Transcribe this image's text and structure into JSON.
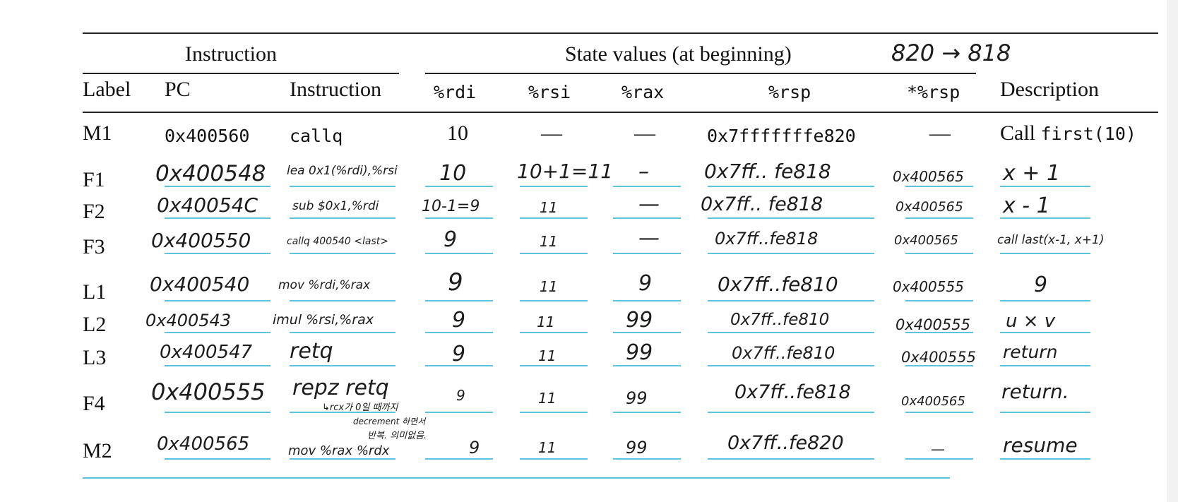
{
  "headers": {
    "group_instruction": "Instruction",
    "group_state": "State values (at beginning)",
    "annotation": "820 → 818",
    "columns": [
      "Label",
      "PC",
      "Instruction",
      "%rdi",
      "%rsi",
      "%rax",
      "%rsp",
      "*%rsp",
      "Description"
    ]
  },
  "rows": [
    {
      "label": "M1",
      "pc": "0x400560",
      "instr": "callq",
      "rdi": "10",
      "rsi": "—",
      "rax": "—",
      "rsp": "0x7fffffffe820",
      "rsp_star": "—",
      "desc_prefix": "Call ",
      "desc_code": "first(10)"
    },
    {
      "label": "F1",
      "pc": "0x400548",
      "instr": "lea 0x1(%rdi),%rsi",
      "rdi": "10",
      "rsi": "10+1=11",
      "rax": "–",
      "rsp": "0x7ff.. fe818",
      "rsp_star": "0x400565",
      "desc": "x + 1"
    },
    {
      "label": "F2",
      "pc": "0x40054C",
      "instr": "sub $0x1,%rdi",
      "rdi": "10-1=9",
      "rsi": "11",
      "rax": "—",
      "rsp": "0x7ff.. fe818",
      "rsp_star": "0x400565",
      "desc": "x - 1"
    },
    {
      "label": "F3",
      "pc": "0x400550",
      "instr": "callq 400540 <last>",
      "rdi": "9",
      "rsi": "11",
      "rax": "—",
      "rsp": "0x7ff..fe818",
      "rsp_star": "0x400565",
      "desc": "call last(x-1, x+1)"
    },
    {
      "label": "L1",
      "pc": "0x400540",
      "instr": "mov %rdi,%rax",
      "rdi": "9",
      "rsi": "11",
      "rax": "9",
      "rsp": "0x7ff..fe810",
      "rsp_star": "0x400555",
      "desc": "9"
    },
    {
      "label": "L2",
      "pc": "0x400543",
      "instr": "imul %rsi,%rax",
      "rdi": "9",
      "rsi": "11",
      "rax": "99",
      "rsp": "0x7ff..fe810",
      "rsp_star": "0x400555",
      "desc": "u × v"
    },
    {
      "label": "L3",
      "pc": "0x400547",
      "instr": "retq",
      "rdi": "9",
      "rsi": "11",
      "rax": "99",
      "rsp": "0x7ff..fe810",
      "rsp_star": "0x400555",
      "desc": "return"
    },
    {
      "label": "F4",
      "pc": "0x400555",
      "instr": "repz retq",
      "rdi": "9",
      "rsi": "11",
      "rax": "99",
      "rsp": "0x7ff..fe818",
      "rsp_star": "0x400565",
      "desc": "return."
    },
    {
      "label": "M2",
      "pc": "0x400565",
      "instr": "mov %rax %rdx",
      "rdi": "9",
      "rsi": "11",
      "rax": "99",
      "rsp": "0x7ff..fe820",
      "rsp_star": "—",
      "desc": "resume"
    }
  ],
  "notes": {
    "f4_line1": "↳rcx가 0일 때까지",
    "f4_line2": "decrement 하면서",
    "f4_line3": "반복. 의미없음."
  },
  "colors": {
    "guide_line": "#5cc3de",
    "rule": "#222222"
  }
}
